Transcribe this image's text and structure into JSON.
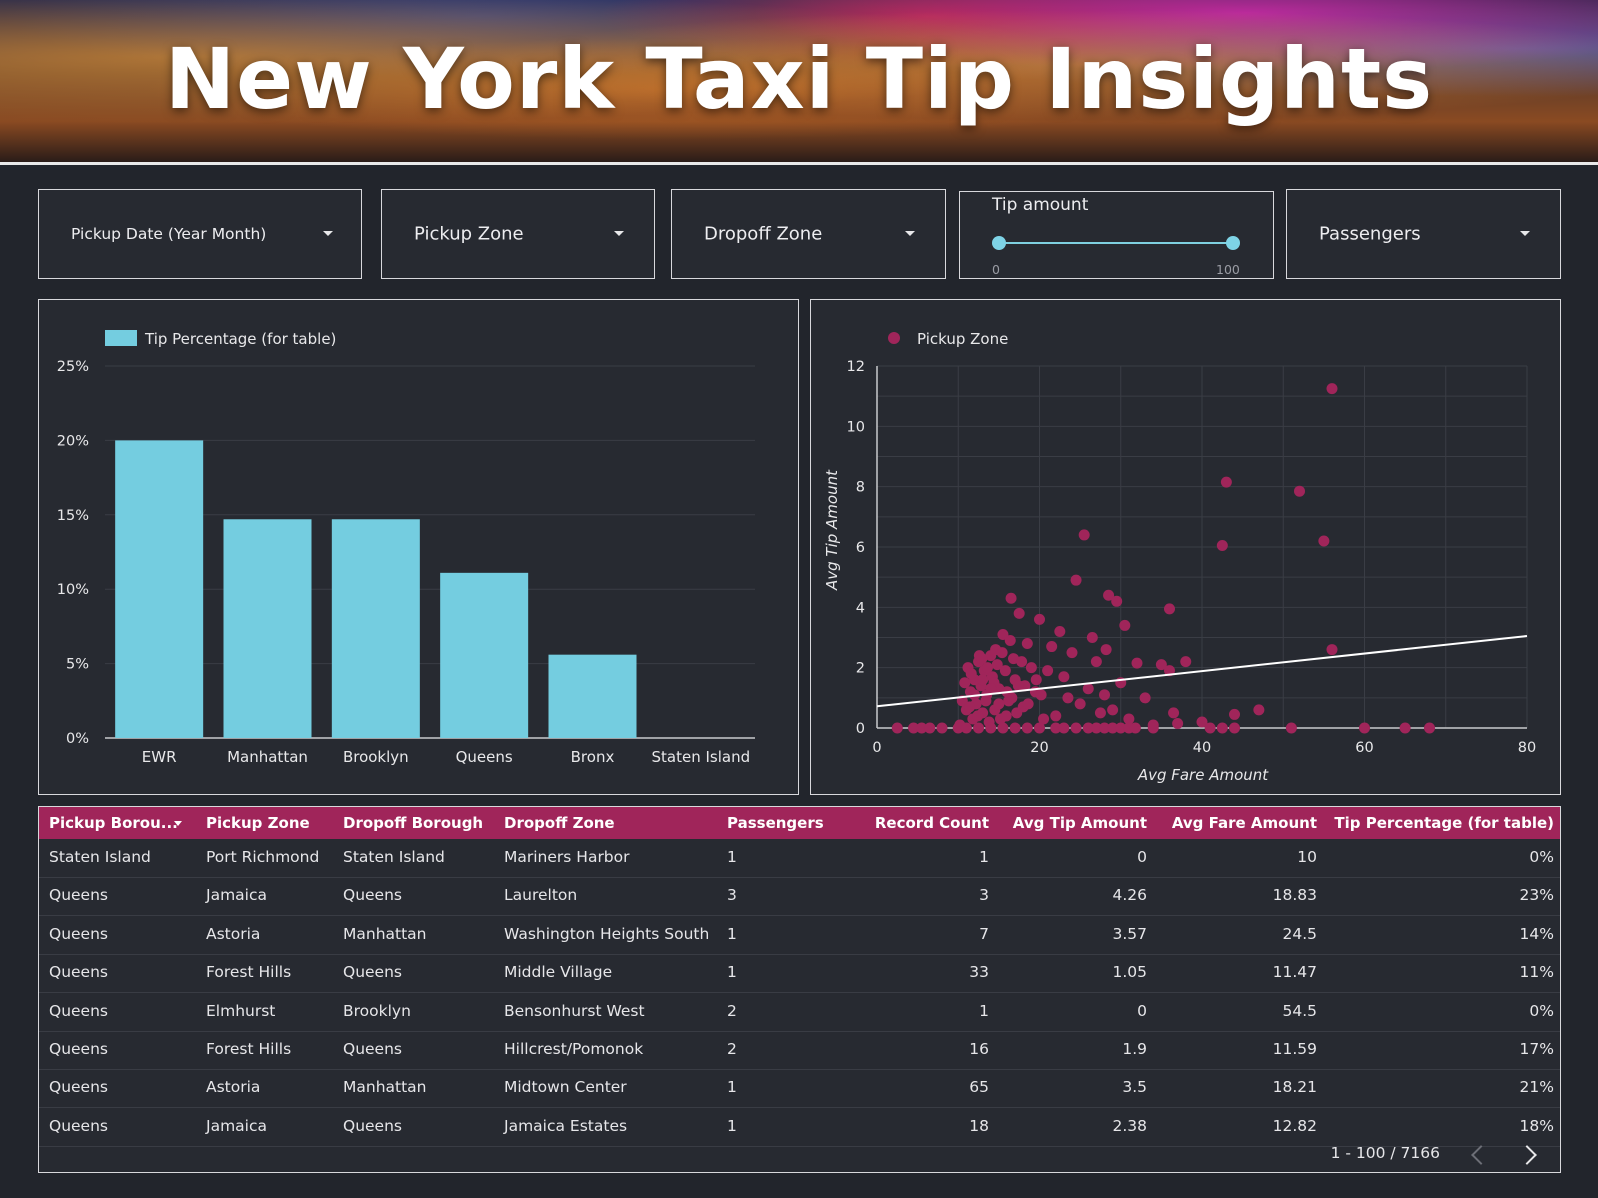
{
  "banner": {
    "title": "New York Taxi Tip Insights"
  },
  "filters": {
    "pickup_date": "Pickup Date (Year Month)",
    "pickup_zone": "Pickup Zone",
    "dropoff_zone": "Dropoff Zone",
    "tip_amount": {
      "label": "Tip amount",
      "min": "0",
      "max": "100"
    },
    "passengers": "Passengers"
  },
  "colors": {
    "bar": "#74cde0",
    "scatter": "#a0255a",
    "header": "#a0255a",
    "background": "#22252c"
  },
  "chart_data": [
    {
      "type": "bar",
      "legend": "Tip Percentage (for table)",
      "categories": [
        "EWR",
        "Manhattan",
        "Brooklyn",
        "Queens",
        "Bronx",
        "Staten Island"
      ],
      "values": [
        20,
        14.7,
        14.7,
        11.1,
        5.6,
        0
      ],
      "yticks": [
        "0%",
        "5%",
        "10%",
        "15%",
        "20%",
        "25%"
      ],
      "ylim": [
        0,
        25
      ],
      "grid": true,
      "legend_position": "top-left"
    },
    {
      "type": "scatter",
      "legend": "Pickup Zone",
      "xlabel": "Avg Fare Amount",
      "ylabel": "Avg Tip Amount",
      "xticks": [
        "0",
        "20",
        "40",
        "60",
        "80"
      ],
      "yticks": [
        "0",
        "2",
        "4",
        "6",
        "8",
        "10",
        "12"
      ],
      "xlim": [
        0,
        80
      ],
      "ylim": [
        0,
        12
      ],
      "grid": true,
      "legend_position": "top-left",
      "trendline": [
        [
          0,
          0.72
        ],
        [
          80,
          3.05
        ]
      ],
      "points": [
        [
          56,
          11.25
        ],
        [
          43,
          8.15
        ],
        [
          52,
          7.85
        ],
        [
          42.5,
          6.05
        ],
        [
          55,
          6.2
        ],
        [
          25.5,
          6.4
        ],
        [
          24.5,
          4.9
        ],
        [
          28.5,
          4.4
        ],
        [
          29.5,
          4.2
        ],
        [
          16.5,
          4.3
        ],
        [
          36,
          3.95
        ],
        [
          56,
          2.6
        ],
        [
          47,
          0.6
        ],
        [
          44,
          0.45
        ],
        [
          40,
          0.2
        ],
        [
          37,
          0.15
        ],
        [
          36.5,
          0.5
        ],
        [
          34,
          0.1
        ],
        [
          32,
          2.15
        ],
        [
          30,
          1.5
        ],
        [
          29,
          0.6
        ],
        [
          28,
          1.1
        ],
        [
          27,
          2.2
        ],
        [
          26,
          1.3
        ],
        [
          25,
          0.8
        ],
        [
          24,
          2.5
        ],
        [
          23,
          1.7
        ],
        [
          22,
          0.4
        ],
        [
          21,
          1.9
        ],
        [
          20,
          3.6
        ],
        [
          20.5,
          0.3
        ],
        [
          19.5,
          1.2
        ],
        [
          18.5,
          2.8
        ],
        [
          18,
          0.7
        ],
        [
          17.5,
          3.8
        ],
        [
          17,
          1.6
        ],
        [
          16.8,
          2.3
        ],
        [
          16.2,
          0.9
        ],
        [
          15.8,
          1.9
        ],
        [
          15.5,
          3.1
        ],
        [
          15.2,
          0.3
        ],
        [
          15,
          1.3
        ],
        [
          14.8,
          2.1
        ],
        [
          14.5,
          0.6
        ],
        [
          14.2,
          1.7
        ],
        [
          14,
          2.4
        ],
        [
          13.8,
          0.2
        ],
        [
          13.5,
          1.1
        ],
        [
          13.2,
          1.9
        ],
        [
          13,
          0.5
        ],
        [
          12.8,
          1.4
        ],
        [
          12.5,
          2.2
        ],
        [
          12.2,
          0.8
        ],
        [
          12,
          1.6
        ],
        [
          11.8,
          0.3
        ],
        [
          11.5,
          1.2
        ],
        [
          11.2,
          2.0
        ],
        [
          11,
          0.6
        ],
        [
          10.8,
          1.5
        ],
        [
          10.5,
          0.9
        ],
        [
          10.2,
          0.1
        ],
        [
          16.6,
          1.0
        ],
        [
          17.2,
          0.5
        ],
        [
          18.2,
          1.4
        ],
        [
          19,
          2.0
        ],
        [
          20.2,
          1.1
        ],
        [
          21.5,
          2.7
        ],
        [
          22.5,
          3.2
        ],
        [
          23.5,
          1.0
        ],
        [
          26.5,
          3.0
        ],
        [
          27.5,
          0.5
        ],
        [
          28.2,
          2.6
        ],
        [
          30.5,
          3.4
        ],
        [
          31,
          0.3
        ],
        [
          33,
          1.0
        ],
        [
          35,
          2.1
        ],
        [
          36,
          1.9
        ],
        [
          38,
          2.2
        ],
        [
          14.6,
          2.6
        ],
        [
          13.6,
          2.0
        ],
        [
          12.6,
          2.4
        ],
        [
          11.6,
          1.8
        ],
        [
          16.4,
          2.9
        ],
        [
          17.8,
          2.2
        ],
        [
          15.4,
          2.5
        ],
        [
          14.4,
          1.5
        ],
        [
          13.4,
          0.9
        ],
        [
          12.4,
          0.4
        ],
        [
          18.6,
          0.8
        ],
        [
          19.6,
          1.6
        ],
        [
          2.5,
          0
        ],
        [
          4.5,
          0
        ],
        [
          5.5,
          0
        ],
        [
          6.5,
          0
        ],
        [
          8,
          0
        ],
        [
          10,
          0
        ],
        [
          11,
          0
        ],
        [
          12.5,
          0
        ],
        [
          14,
          0
        ],
        [
          15.5,
          0
        ],
        [
          17,
          0
        ],
        [
          18.5,
          0
        ],
        [
          20,
          0
        ],
        [
          22,
          0
        ],
        [
          23,
          0
        ],
        [
          24.5,
          0
        ],
        [
          26,
          0
        ],
        [
          27,
          0
        ],
        [
          28,
          0
        ],
        [
          29,
          0
        ],
        [
          30,
          0
        ],
        [
          31,
          0
        ],
        [
          31.8,
          0
        ],
        [
          34,
          0
        ],
        [
          41,
          0
        ],
        [
          42.5,
          0
        ],
        [
          44,
          0
        ],
        [
          51,
          0
        ],
        [
          60,
          0
        ],
        [
          65,
          0
        ],
        [
          68,
          0
        ],
        [
          16,
          1.2
        ],
        [
          15,
          0.8
        ],
        [
          13,
          1.6
        ],
        [
          12,
          1.1
        ],
        [
          14,
          1.3
        ],
        [
          17.4,
          1.4
        ],
        [
          15.9,
          0.4
        ],
        [
          11.4,
          0.7
        ],
        [
          12.9,
          2.3
        ]
      ]
    }
  ],
  "table": {
    "headers": [
      "Pickup Borou...",
      "Pickup Zone",
      "Dropoff Borough",
      "Dropoff Zone",
      "Passengers",
      "Record Count",
      "Avg Tip Amount",
      "Avg Fare Amount",
      "Tip Percentage (for table)"
    ],
    "rows": [
      [
        "Staten Island",
        "Port Richmond",
        "Staten Island",
        "Mariners Harbor",
        "1",
        "1",
        "0",
        "10",
        "0%"
      ],
      [
        "Queens",
        "Jamaica",
        "Queens",
        "Laurelton",
        "3",
        "3",
        "4.26",
        "18.83",
        "23%"
      ],
      [
        "Queens",
        "Astoria",
        "Manhattan",
        "Washington Heights South",
        "1",
        "7",
        "3.57",
        "24.5",
        "14%"
      ],
      [
        "Queens",
        "Forest Hills",
        "Queens",
        "Middle Village",
        "1",
        "33",
        "1.05",
        "11.47",
        "11%"
      ],
      [
        "Queens",
        "Elmhurst",
        "Brooklyn",
        "Bensonhurst West",
        "2",
        "1",
        "0",
        "54.5",
        "0%"
      ],
      [
        "Queens",
        "Forest Hills",
        "Queens",
        "Hillcrest/Pomonok",
        "2",
        "16",
        "1.9",
        "11.59",
        "17%"
      ],
      [
        "Queens",
        "Astoria",
        "Manhattan",
        "Midtown Center",
        "1",
        "65",
        "3.5",
        "18.21",
        "21%"
      ],
      [
        "Queens",
        "Jamaica",
        "Queens",
        "Jamaica Estates",
        "1",
        "18",
        "2.38",
        "12.82",
        "18%"
      ]
    ],
    "pagination": "1 - 100 / 7166"
  }
}
